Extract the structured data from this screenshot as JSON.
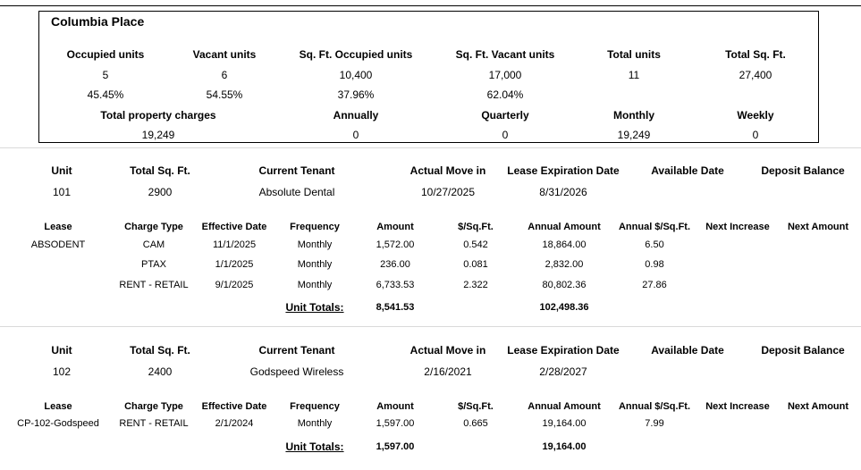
{
  "property": {
    "name": "Columbia Place",
    "stats_headers": [
      "Occupied units",
      "Vacant units",
      "Sq. Ft. Occupied units",
      "Sq. Ft. Vacant units",
      "Total units",
      "Total Sq. Ft."
    ],
    "stats_values": [
      "5",
      "6",
      "10,400",
      "17,000",
      "11",
      "27,400"
    ],
    "stats_pct": [
      "45.45%",
      "54.55%",
      "37.96%",
      "62.04%"
    ],
    "charge_headers": [
      "Total property charges",
      "Annually",
      "Quarterly",
      "Monthly",
      "Weekly"
    ],
    "charge_values": [
      "19,249",
      "0",
      "0",
      "19,249",
      "0"
    ]
  },
  "unit_headers": [
    "Unit",
    "Total Sq. Ft.",
    "Current Tenant",
    "Actual Move in",
    "Lease Expiration Date",
    "Available Date",
    "Deposit Balance"
  ],
  "charge_table_headers": [
    "Lease",
    "Charge Type",
    "Effective Date",
    "Frequency",
    "Amount",
    "$/Sq.Ft.",
    "Annual Amount",
    "Annual $/Sq.Ft.",
    "Next Increase",
    "Next Amount"
  ],
  "unit_totals_label": "Unit Totals:",
  "units": [
    {
      "unit": "101",
      "sqft": "2900",
      "tenant": "Absolute Dental",
      "move_in": "10/27/2025",
      "lease_exp": "8/31/2026",
      "lease": "ABSODENT",
      "charges": [
        {
          "type": "CAM",
          "eff": "11/1/2025",
          "freq": "Monthly",
          "amount": "1,572.00",
          "psf": "0.542",
          "annual": "18,864.00",
          "annual_psf": "6.50"
        },
        {
          "type": "PTAX",
          "eff": "1/1/2025",
          "freq": "Monthly",
          "amount": "236.00",
          "psf": "0.081",
          "annual": "2,832.00",
          "annual_psf": "0.98"
        },
        {
          "type": "RENT - RETAIL",
          "eff": "9/1/2025",
          "freq": "Monthly",
          "amount": "6,733.53",
          "psf": "2.322",
          "annual": "80,802.36",
          "annual_psf": "27.86"
        }
      ],
      "total_amount": "8,541.53",
      "total_annual": "102,498.36"
    },
    {
      "unit": "102",
      "sqft": "2400",
      "tenant": "Godspeed Wireless",
      "move_in": "2/16/2021",
      "lease_exp": "2/28/2027",
      "lease": "CP-102-Godspeed",
      "charges": [
        {
          "type": "RENT - RETAIL",
          "eff": "2/1/2024",
          "freq": "Monthly",
          "amount": "1,597.00",
          "psf": "0.665",
          "annual": "19,164.00",
          "annual_psf": "7.99"
        }
      ],
      "total_amount": "1,597.00",
      "total_annual": "19,164.00"
    }
  ]
}
